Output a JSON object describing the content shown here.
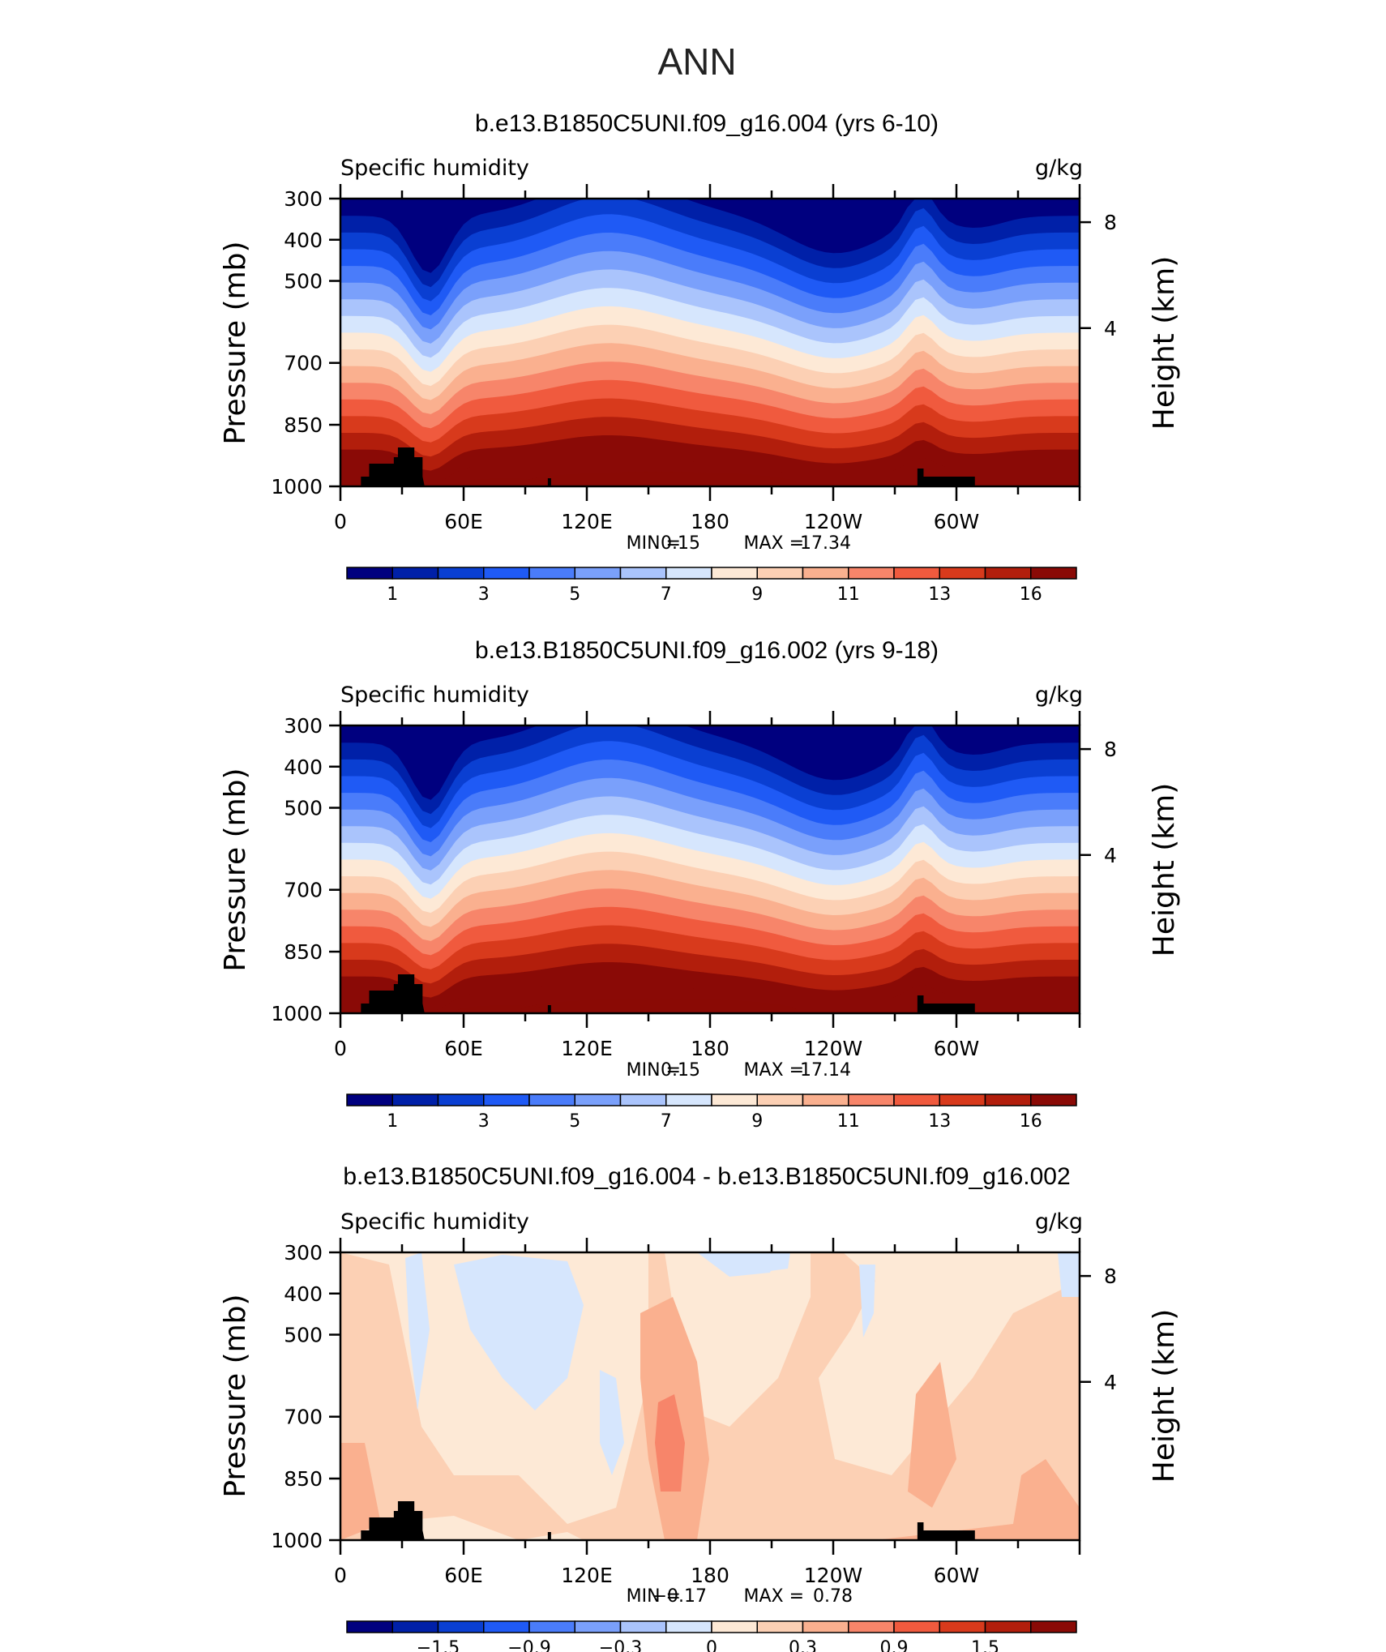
{
  "page_title": "ANN",
  "chart_data": [
    {
      "type": "heatmap",
      "title": "b.e13.B1850C5UNI.f09_g16.004 (yrs 6-10)",
      "left_label": "Specific humidity",
      "right_label": "g/kg",
      "ylabel": "Pressure (mb)",
      "ylabel_right": "Height (km)",
      "pressure_ticks": [
        "300",
        "400",
        "500",
        "700",
        "850",
        "1000"
      ],
      "height_ticks": [
        "8",
        "4"
      ],
      "x_ticks": [
        "0",
        "60E",
        "120E",
        "180",
        "120W",
        "60W"
      ],
      "min_label": "MIN =",
      "min_value": "0.15",
      "max_label": "MAX =",
      "max_value": "17.34",
      "colorbar_labels": [
        "1",
        "3",
        "5",
        "7",
        "9",
        "11",
        "13",
        "16"
      ],
      "variant": "abs"
    },
    {
      "type": "heatmap",
      "title": "b.e13.B1850C5UNI.f09_g16.002 (yrs 9-18)",
      "left_label": "Specific humidity",
      "right_label": "g/kg",
      "ylabel": "Pressure (mb)",
      "ylabel_right": "Height (km)",
      "pressure_ticks": [
        "300",
        "400",
        "500",
        "700",
        "850",
        "1000"
      ],
      "height_ticks": [
        "8",
        "4"
      ],
      "x_ticks": [
        "0",
        "60E",
        "120E",
        "180",
        "120W",
        "60W"
      ],
      "min_label": "MIN =",
      "min_value": "0.15",
      "max_label": "MAX =",
      "max_value": "17.14",
      "colorbar_labels": [
        "1",
        "3",
        "5",
        "7",
        "9",
        "11",
        "13",
        "16"
      ],
      "variant": "abs"
    },
    {
      "type": "heatmap",
      "title": "b.e13.B1850C5UNI.f09_g16.004 - b.e13.B1850C5UNI.f09_g16.002",
      "left_label": "Specific humidity",
      "right_label": "g/kg",
      "ylabel": "Pressure (mb)",
      "ylabel_right": "Height (km)",
      "pressure_ticks": [
        "300",
        "400",
        "500",
        "700",
        "850",
        "1000"
      ],
      "height_ticks": [
        "8",
        "4"
      ],
      "x_ticks": [
        "0",
        "60E",
        "120E",
        "180",
        "120W",
        "60W"
      ],
      "min_label": "MIN =",
      "min_value": "−0.17",
      "max_label": "MAX =",
      "max_value": "0.78",
      "colorbar_labels": [
        "−1.5",
        "−0.9",
        "−0.3",
        "0",
        "0.3",
        "0.9",
        "1.5"
      ],
      "variant": "diff"
    }
  ],
  "colors": {
    "scale": [
      "#00007f",
      "#0020a8",
      "#0a3fd2",
      "#1f5af5",
      "#4a7cfa",
      "#7aa0fb",
      "#aac4fc",
      "#d6e6fd",
      "#fde9d6",
      "#fcd0b4",
      "#fab08f",
      "#f7856a",
      "#f05a3e",
      "#d83a1c",
      "#b21e0c",
      "#8a0a06"
    ],
    "frame": "#000000",
    "terrain": "#000000"
  }
}
